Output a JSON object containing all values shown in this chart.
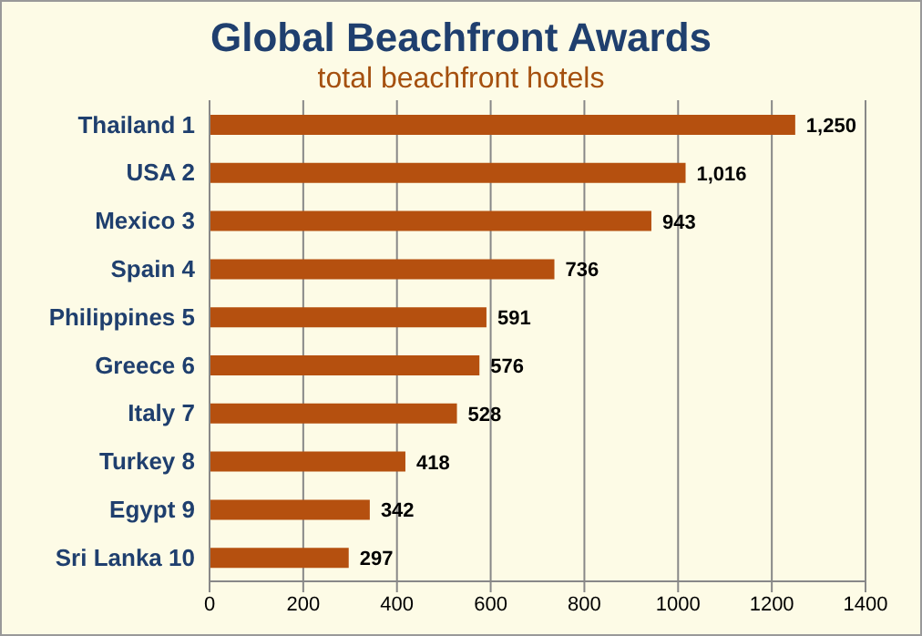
{
  "chart_data": {
    "type": "bar",
    "orientation": "horizontal",
    "title": "Global Beachfront Awards",
    "subtitle": "total beachfront hotels",
    "categories": [
      "Thailand  1",
      "USA  2",
      "Mexico  3",
      "Spain  4",
      "Philippines  5",
      "Greece  6",
      "Italy  7",
      "Turkey  8",
      "Egypt  9",
      "Sri Lanka  10"
    ],
    "values": [
      1250,
      1016,
      943,
      736,
      591,
      576,
      528,
      418,
      342,
      297
    ],
    "value_labels": [
      "1,250",
      "1,016",
      "943",
      "736",
      "591",
      "576",
      "528",
      "418",
      "342",
      "297"
    ],
    "color": "#b5500f",
    "xlim": [
      0,
      1400
    ],
    "xticks": [
      0,
      200,
      400,
      600,
      800,
      1000,
      1200,
      1400
    ],
    "grid": "x"
  }
}
